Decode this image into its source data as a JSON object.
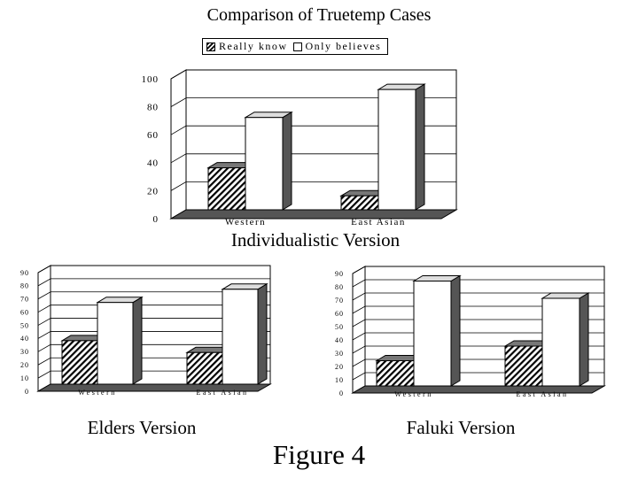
{
  "figure": {
    "title": "Comparison of Truetemp Cases",
    "label": "Figure 4",
    "legend": {
      "really_know": "Really know",
      "only_believes": "Only believes"
    }
  },
  "chart_data": [
    {
      "type": "bar",
      "caption": "Individualistic Version",
      "categories": [
        "Western",
        "East Asian"
      ],
      "series": [
        {
          "name": "Really know",
          "values": [
            30,
            10
          ]
        },
        {
          "name": "Only believes",
          "values": [
            66,
            86
          ]
        }
      ],
      "ylim": [
        0,
        100
      ],
      "yticks": [
        "0",
        "20",
        "40",
        "60",
        "80",
        "100"
      ]
    },
    {
      "type": "bar",
      "caption": "Elders Version",
      "categories": [
        "Western",
        "East Asian"
      ],
      "series": [
        {
          "name": "Really know",
          "values": [
            33,
            24
          ]
        },
        {
          "name": "Only believes",
          "values": [
            62,
            72
          ]
        }
      ],
      "ylim": [
        0,
        90
      ],
      "yticks": [
        "0",
        "10",
        "20",
        "30",
        "40",
        "50",
        "60",
        "70",
        "80",
        "90"
      ]
    },
    {
      "type": "bar",
      "caption": "Faluki Version",
      "categories": [
        "Western",
        "East Asian"
      ],
      "series": [
        {
          "name": "Really know",
          "values": [
            19,
            30
          ]
        },
        {
          "name": "Only believes",
          "values": [
            79,
            66
          ]
        }
      ],
      "ylim": [
        0,
        90
      ],
      "yticks": [
        "0",
        "10",
        "20",
        "30",
        "40",
        "50",
        "60",
        "70",
        "80",
        "90"
      ]
    }
  ]
}
